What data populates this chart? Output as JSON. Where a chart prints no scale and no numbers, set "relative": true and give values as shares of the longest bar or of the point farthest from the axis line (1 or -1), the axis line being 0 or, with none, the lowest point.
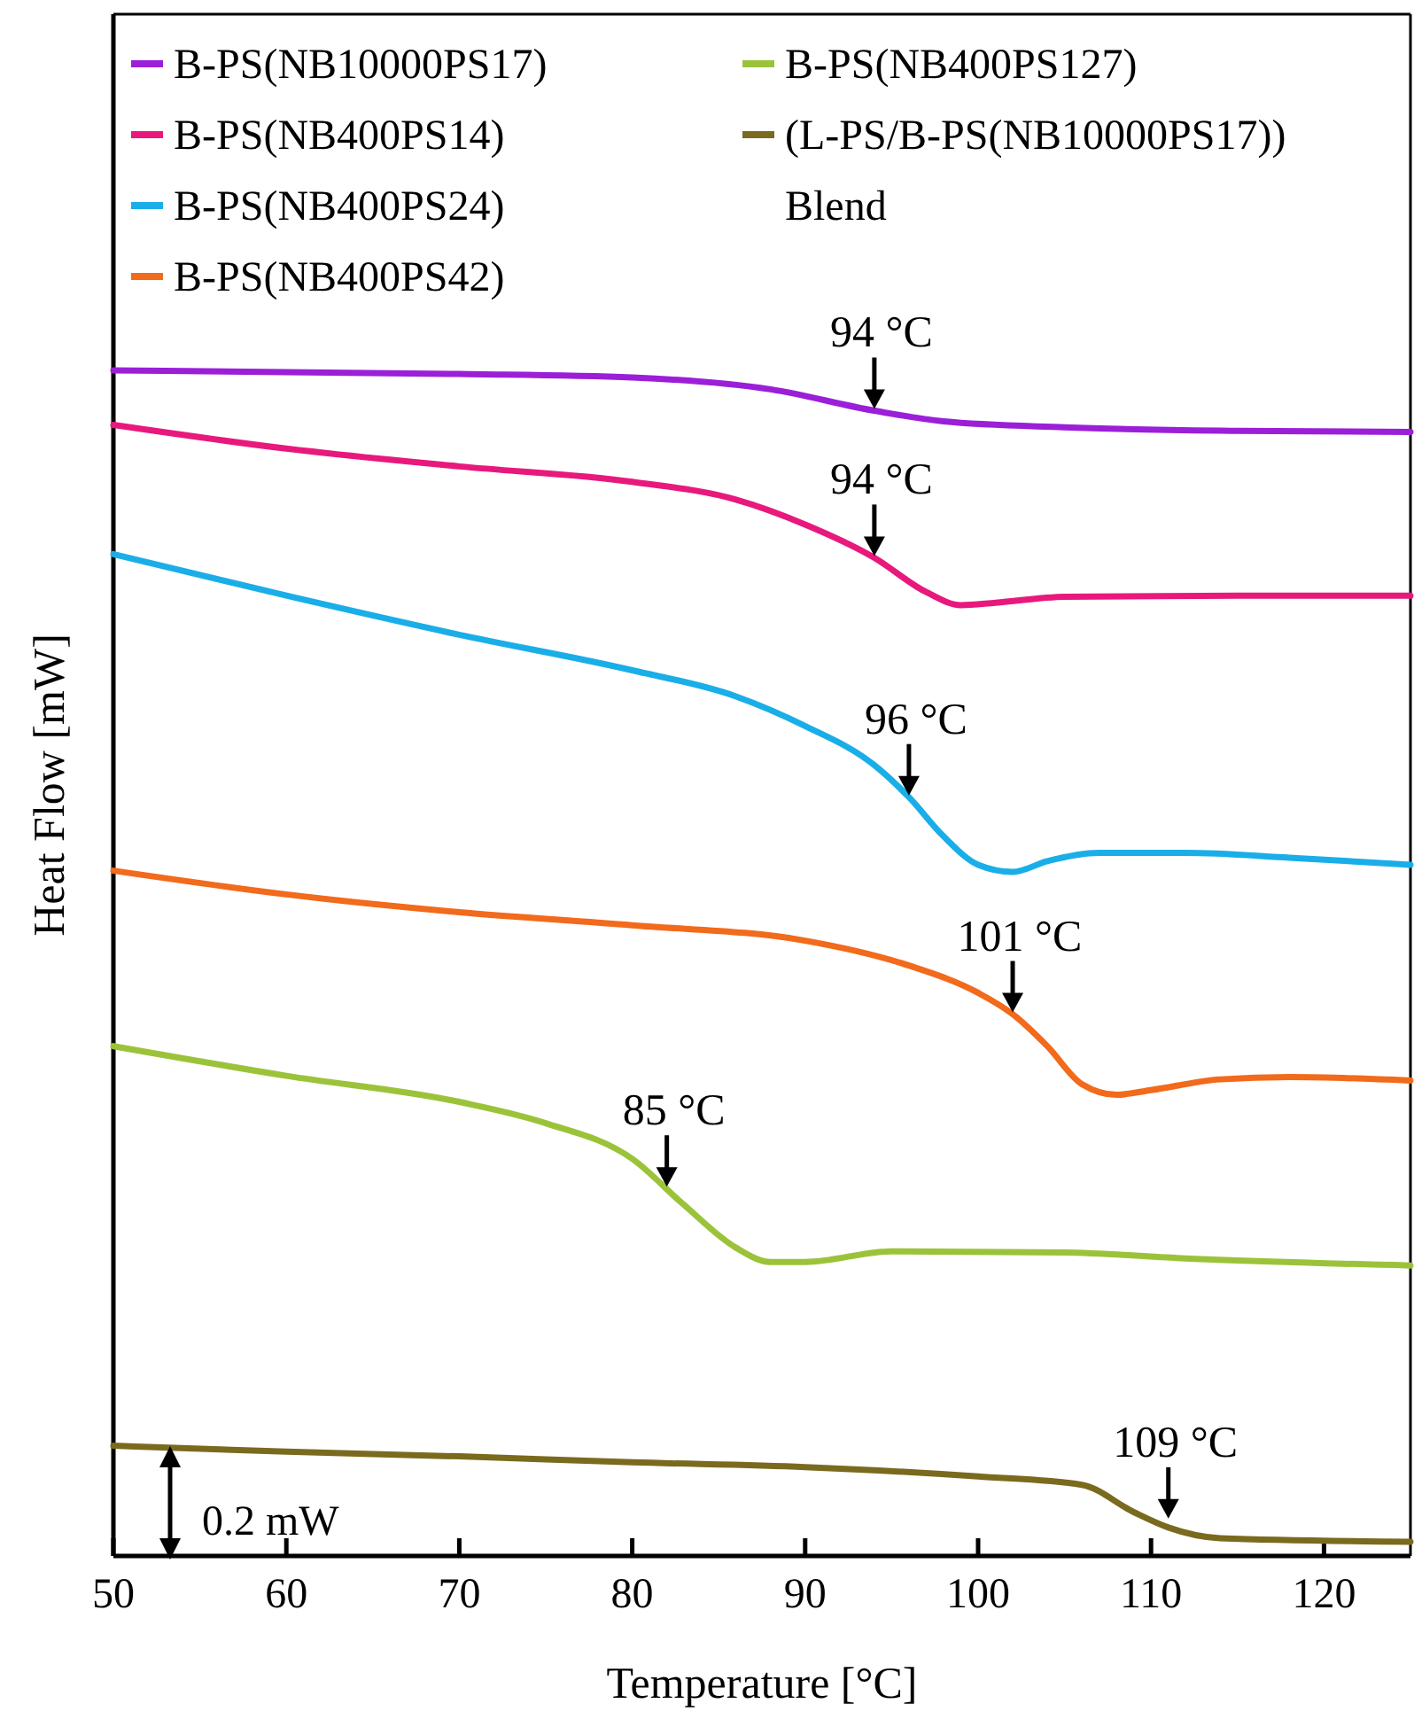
{
  "chart_data": {
    "type": "line",
    "xlabel": "Temperature [°C]",
    "ylabel": "Heat Flow [mW]",
    "relative": true,
    "xlim": [
      50,
      125
    ],
    "xticks": [
      50,
      60,
      70,
      80,
      90,
      100,
      110,
      120
    ],
    "legend": "top left",
    "marker": "none",
    "line_style": "solid",
    "series": [
      {
        "name": "B-PS(NB10000PS17)",
        "color": "#9b1fd8",
        "x": [
          50,
          70,
          80,
          88,
          94,
          98,
          105,
          115,
          125
        ],
        "values": [
          1.0,
          0.997,
          0.994,
          0.984,
          0.966,
          0.957,
          0.952,
          0.949,
          0.948
        ]
      },
      {
        "name": "B-PS(NB400PS14)",
        "color": "#e8197d",
        "x": [
          50,
          60,
          70,
          80,
          86,
          90,
          94,
          97,
          99,
          101,
          105,
          115,
          125
        ],
        "values": [
          0.954,
          0.934,
          0.919,
          0.906,
          0.891,
          0.87,
          0.842,
          0.813,
          0.802,
          0.804,
          0.809,
          0.81,
          0.81
        ]
      },
      {
        "name": "B-PS(NB400PS24)",
        "color": "#1aaee8",
        "x": [
          50,
          60,
          70,
          80,
          86,
          90,
          94,
          96,
          98,
          100,
          102,
          104,
          107,
          112,
          118,
          125
        ],
        "values": [
          0.845,
          0.81,
          0.777,
          0.747,
          0.725,
          0.7,
          0.667,
          0.64,
          0.607,
          0.583,
          0.577,
          0.586,
          0.593,
          0.593,
          0.589,
          0.583
        ]
      },
      {
        "name": "B-PS(NB400PS42)",
        "color": "#f26a1b",
        "x": [
          50,
          60,
          70,
          80,
          90,
          96,
          100,
          102,
          104,
          106,
          108,
          110,
          114,
          118,
          125
        ],
        "values": [
          0.578,
          0.558,
          0.543,
          0.532,
          0.519,
          0.498,
          0.475,
          0.457,
          0.43,
          0.398,
          0.389,
          0.393,
          0.402,
          0.404,
          0.401
        ]
      },
      {
        "name": "B-PS(NB400PS127)",
        "color": "#9bc33a",
        "x": [
          50,
          60,
          70,
          75,
          80,
          83,
          86,
          88,
          90,
          95,
          105,
          112,
          125
        ],
        "values": [
          0.43,
          0.405,
          0.383,
          0.365,
          0.335,
          0.296,
          0.26,
          0.248,
          0.248,
          0.257,
          0.256,
          0.251,
          0.245
        ]
      },
      {
        "name": "(L-PS/B-PS(NB10000PS17)) Blend",
        "color": "#7a6a1e",
        "x": [
          50,
          60,
          70,
          80,
          90,
          100,
          106,
          109,
          111,
          114,
          125
        ],
        "values": [
          0.093,
          0.088,
          0.084,
          0.079,
          0.075,
          0.067,
          0.06,
          0.037,
          0.024,
          0.015,
          0.012
        ]
      }
    ],
    "annotations": [
      {
        "text": "94 °C",
        "x": 94,
        "y": 0.966
      },
      {
        "text": "94 °C",
        "x": 94,
        "y": 0.842
      },
      {
        "text": "96 °C",
        "x": 96,
        "y": 0.64
      },
      {
        "text": "101 °C",
        "x": 102,
        "y": 0.457
      },
      {
        "text": "85 °C",
        "x": 82,
        "y": 0.31
      },
      {
        "text": "109 °C",
        "x": 111,
        "y": 0.03
      },
      "0.2 mW"
    ]
  }
}
